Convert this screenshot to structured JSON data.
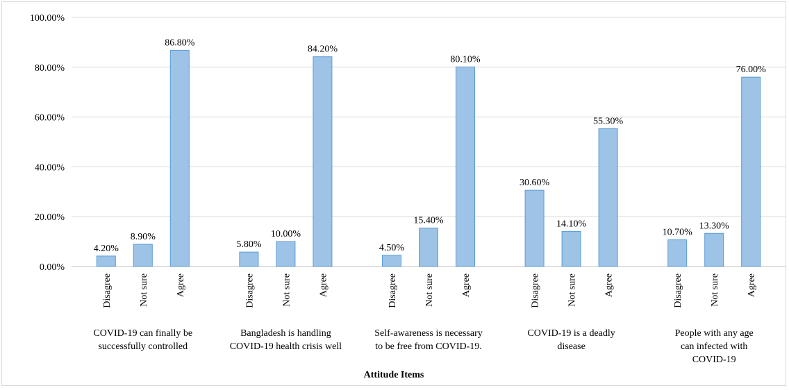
{
  "chart_data": {
    "type": "bar",
    "xlabel": "Attitude Items",
    "ylabel": "",
    "ylim": [
      0,
      100
    ],
    "yticks": [
      "0.00%",
      "20.00%",
      "40.00%",
      "60.00%",
      "80.00%",
      "100.00%"
    ],
    "grid": true,
    "legend": "none",
    "bar_color": "#9dc3e6",
    "bar_edge": "#5b9bd5",
    "groups": [
      {
        "label_lines": [
          "COVID-19 can finally be",
          "successfully controlled"
        ],
        "categories": [
          "Disagree",
          "Not sure",
          "Agree"
        ],
        "values": [
          4.2,
          8.9,
          86.8
        ],
        "labels": [
          "4.20%",
          "8.90%",
          "86.80%"
        ]
      },
      {
        "label_lines": [
          "Bangladesh is handling",
          "COVID-19 health crisis well"
        ],
        "categories": [
          "Disagree",
          "Not sure",
          "Agree"
        ],
        "values": [
          5.8,
          10.0,
          84.2
        ],
        "labels": [
          "5.80%",
          "10.00%",
          "84.20%"
        ]
      },
      {
        "label_lines": [
          "Self-awareness is necessary",
          "to be free from COVID-19."
        ],
        "categories": [
          "Disagree",
          "Not sure",
          "Agree"
        ],
        "values": [
          4.5,
          15.4,
          80.1
        ],
        "labels": [
          "4.50%",
          "15.40%",
          "80.10%"
        ]
      },
      {
        "label_lines": [
          "COVID-19 is a deadly",
          "disease"
        ],
        "categories": [
          "Disagree",
          "Not sure",
          "Agree"
        ],
        "values": [
          30.6,
          14.1,
          55.3
        ],
        "labels": [
          "30.60%",
          "14.10%",
          "55.30%"
        ]
      },
      {
        "label_lines": [
          "People with any age",
          "can  infected with",
          "COVID-19"
        ],
        "categories": [
          "Disagree",
          "Not sure",
          "Agree"
        ],
        "values": [
          10.7,
          13.3,
          76.0
        ],
        "labels": [
          "10.70%",
          "13.30%",
          "76.00%"
        ]
      }
    ]
  }
}
